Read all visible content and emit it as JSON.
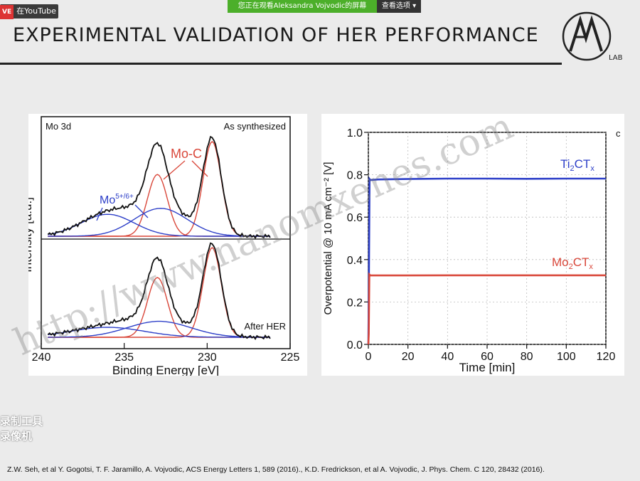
{
  "topbar": {
    "live_badge": "VE",
    "youtube_label": "在YouTube",
    "viewing_banner": "您正在观看Aleksandra Vojvodic的屏幕",
    "view_options": "查看选项"
  },
  "slide": {
    "title": "EXPERIMENTAL VALIDATION OF HER PERFORMANCE",
    "logo_letters": "AV",
    "logo_sub": "LAB",
    "watermark": "http://www.nanomxenes.com",
    "recorder_line1": "录制工具",
    "recorder_line2": "录像机",
    "citation": "Z.W. Seh, et al Y. Gogotsi, T. F. Jaramillo, A. Vojvodic, ACS Energy Letters 1, 589 (2016)., K.D. Fredrickson, et al A. Vojvodic, J. Phys. Chem. C 120, 28432 (2016)."
  },
  "colors": {
    "blue": "#2d3fc8",
    "red": "#d9473a",
    "black": "#111111",
    "green_banner": "#4caf2a"
  },
  "chart_data": [
    {
      "type": "line",
      "title": "",
      "top_left_label": "Mo 3d",
      "top_right_label": "As synthesized",
      "bottom_right_label": "After HER",
      "annot_moc": "Mo-C",
      "annot_mo56": "Mo5+/6+",
      "xlabel": "Binding Energy [eV]",
      "ylabel": "Intensity [a.u.]",
      "xlim": [
        240,
        225
      ],
      "xticks": [
        240,
        235,
        230,
        225
      ],
      "peaks_top": {
        "red": [
          {
            "c": 229.7,
            "h": 0.95,
            "w": 0.55
          },
          {
            "c": 233.0,
            "h": 0.62,
            "w": 0.6
          }
        ],
        "blue": [
          {
            "c": 232.8,
            "h": 0.28,
            "w": 1.6
          },
          {
            "c": 236.0,
            "h": 0.22,
            "w": 1.6
          }
        ]
      },
      "peaks_bottom": {
        "red": [
          {
            "c": 229.7,
            "h": 0.9,
            "w": 0.55
          },
          {
            "c": 233.0,
            "h": 0.6,
            "w": 0.6
          }
        ],
        "blue": [
          {
            "c": 232.9,
            "h": 0.16,
            "w": 1.9
          },
          {
            "c": 236.0,
            "h": 0.1,
            "w": 2.2
          }
        ]
      }
    },
    {
      "type": "line",
      "xlabel": "Time [min]",
      "ylabel": "Overpotential @ 10 mA cm⁻² [V]",
      "panel_label": "c",
      "xlim": [
        0,
        120
      ],
      "ylim": [
        0.0,
        1.0
      ],
      "xticks": [
        0,
        20,
        40,
        60,
        80,
        100,
        120
      ],
      "yticks": [
        0.0,
        0.2,
        0.4,
        0.6,
        0.8,
        1.0
      ],
      "series": [
        {
          "name": "Ti2CTx",
          "x": [
            0,
            0.3,
            0.6,
            1,
            5,
            20,
            40,
            60,
            80,
            100,
            120
          ],
          "y": [
            0.0,
            0.31,
            0.78,
            0.775,
            0.778,
            0.78,
            0.782,
            0.782,
            0.781,
            0.782,
            0.782
          ]
        },
        {
          "name": "Mo2CTx",
          "x": [
            0,
            0.2,
            0.5,
            1,
            5,
            20,
            40,
            60,
            80,
            100,
            120
          ],
          "y": [
            0.0,
            0.05,
            0.33,
            0.325,
            0.325,
            0.325,
            0.326,
            0.326,
            0.326,
            0.326,
            0.326
          ]
        }
      ]
    }
  ]
}
